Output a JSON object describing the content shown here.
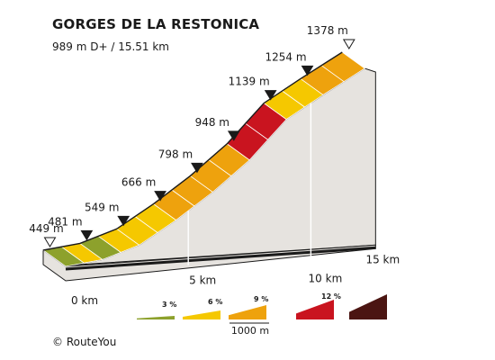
{
  "header": {
    "title": "GORGES DE LA RESTONICA",
    "subtitle": "989 m D+ / 15.51 km"
  },
  "footer": {
    "copyright": "© RouteYou"
  },
  "colors": {
    "grade_3": "#8da12c",
    "grade_6": "#f5c800",
    "grade_9": "#eea20d",
    "grade_12": "#c9141f",
    "grade_max": "#4b1512",
    "side_face": "#e6e3df",
    "top_face": "#ffffff",
    "outline": "#1a1a1a"
  },
  "chart_data": {
    "type": "area",
    "title": "GORGES DE LA RESTONICA",
    "total_distance_km": 15.51,
    "total_ascent_m": 989,
    "x_unit": "km",
    "x_ticks": [
      {
        "value": 0,
        "label": "0 km"
      },
      {
        "value": 5,
        "label": "5 km"
      },
      {
        "value": 10,
        "label": "10 km"
      },
      {
        "value": 15,
        "label": "15 km"
      }
    ],
    "elevation_markers": [
      {
        "km": 0,
        "elevation": 449,
        "label": "449 m",
        "kind": "endpoint"
      },
      {
        "km": 1.5,
        "elevation": 481,
        "label": "481 m",
        "kind": "waypoint"
      },
      {
        "km": 3.0,
        "elevation": 549,
        "label": "549 m",
        "kind": "waypoint"
      },
      {
        "km": 4.5,
        "elevation": 666,
        "label": "666 m",
        "kind": "waypoint"
      },
      {
        "km": 6.0,
        "elevation": 798,
        "label": "798 m",
        "kind": "waypoint"
      },
      {
        "km": 7.5,
        "elevation": 948,
        "label": "948 m",
        "kind": "waypoint"
      },
      {
        "km": 9.0,
        "elevation": 1139,
        "label": "1139 m",
        "kind": "waypoint"
      },
      {
        "km": 10.5,
        "elevation": 1254,
        "label": "1254 m",
        "kind": "waypoint"
      },
      {
        "km": 12.2,
        "elevation": 1378,
        "label": "1378 m",
        "kind": "endpoint"
      }
    ],
    "segments": [
      {
        "from_km": 0.0,
        "to_km": 0.75,
        "grade": 3
      },
      {
        "from_km": 0.75,
        "to_km": 1.5,
        "grade": 6
      },
      {
        "from_km": 1.5,
        "to_km": 2.25,
        "grade": 3
      },
      {
        "from_km": 2.25,
        "to_km": 3.0,
        "grade": 6
      },
      {
        "from_km": 3.0,
        "to_km": 3.75,
        "grade": 6
      },
      {
        "from_km": 3.75,
        "to_km": 4.5,
        "grade": 6
      },
      {
        "from_km": 4.5,
        "to_km": 5.25,
        "grade": 9
      },
      {
        "from_km": 5.25,
        "to_km": 6.0,
        "grade": 9
      },
      {
        "from_km": 6.0,
        "to_km": 6.75,
        "grade": 9
      },
      {
        "from_km": 6.75,
        "to_km": 7.5,
        "grade": 9
      },
      {
        "from_km": 7.5,
        "to_km": 8.25,
        "grade": 12
      },
      {
        "from_km": 8.25,
        "to_km": 9.0,
        "grade": 12
      },
      {
        "from_km": 9.0,
        "to_km": 9.75,
        "grade": 6
      },
      {
        "from_km": 9.75,
        "to_km": 10.5,
        "grade": 6
      },
      {
        "from_km": 10.5,
        "to_km": 11.35,
        "grade": 9
      },
      {
        "from_km": 11.35,
        "to_km": 12.2,
        "grade": 9
      }
    ],
    "legend": {
      "entries": [
        {
          "label": "3 %",
          "grade": 3
        },
        {
          "label": "6 %",
          "grade": 6
        },
        {
          "label": "9 %",
          "grade": 9
        },
        {
          "label": "12 %",
          "grade": 12
        },
        {
          "label": "",
          "grade": "max"
        }
      ],
      "scale_label": "1000 m"
    }
  }
}
